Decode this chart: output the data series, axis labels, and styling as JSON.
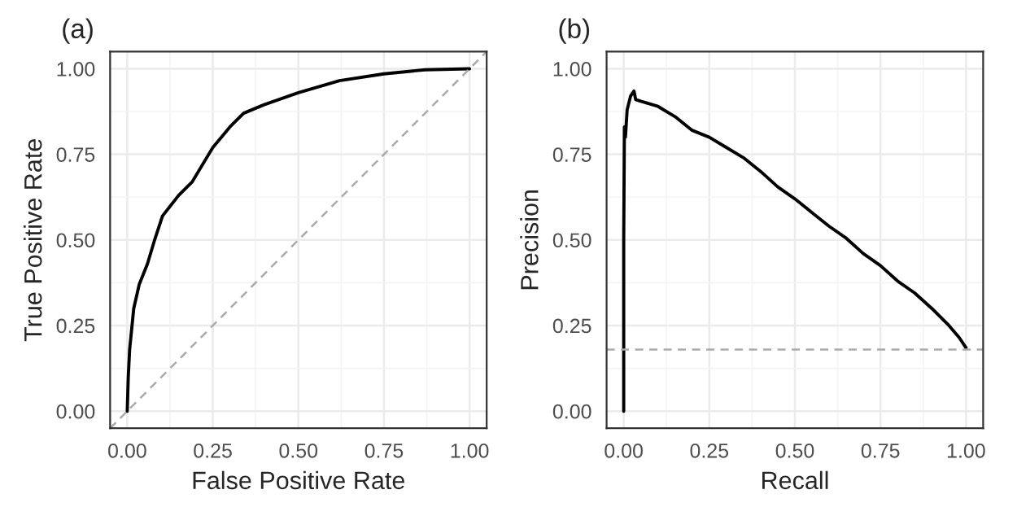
{
  "chart_data": [
    {
      "type": "line",
      "title": "(a)",
      "xlabel": "False Positive Rate",
      "ylabel": "True Positive Rate",
      "xlim": [
        -0.05,
        1.05
      ],
      "ylim": [
        -0.05,
        1.05
      ],
      "xticks": [
        {
          "value": 0,
          "label": "0.00"
        },
        {
          "value": 0.25,
          "label": "0.25"
        },
        {
          "value": 0.5,
          "label": "0.50"
        },
        {
          "value": 0.75,
          "label": "0.75"
        },
        {
          "value": 1,
          "label": "1.00"
        }
      ],
      "yticks": [
        {
          "value": 0,
          "label": "0.00"
        },
        {
          "value": 0.25,
          "label": "0.25"
        },
        {
          "value": 0.5,
          "label": "0.50"
        },
        {
          "value": 0.75,
          "label": "0.75"
        },
        {
          "value": 1,
          "label": "1.00"
        }
      ],
      "grid": true,
      "legend": false,
      "series": [
        {
          "color": "#000000",
          "line_style": "solid",
          "x": [
            0,
            0.003,
            0.007,
            0.019,
            0.035,
            0.059,
            0.08,
            0.103,
            0.15,
            0.19,
            0.25,
            0.3,
            0.34,
            0.4,
            0.5,
            0.62,
            0.75,
            0.87,
            1
          ],
          "values": [
            0,
            0.1,
            0.18,
            0.3,
            0.37,
            0.43,
            0.5,
            0.57,
            0.63,
            0.67,
            0.77,
            0.83,
            0.87,
            0.895,
            0.93,
            0.965,
            0.985,
            0.997,
            1
          ]
        },
        {
          "color": "#aaaaaa",
          "line_style": "dashed",
          "x": [
            -0.05,
            1.05
          ],
          "values": [
            -0.05,
            1.05
          ]
        }
      ]
    },
    {
      "type": "line",
      "title": "(b)",
      "xlabel": "Recall",
      "ylabel": "Precision",
      "xlim": [
        -0.05,
        1.05
      ],
      "ylim": [
        -0.05,
        1.05
      ],
      "xticks": [
        {
          "value": 0,
          "label": "0.00"
        },
        {
          "value": 0.25,
          "label": "0.25"
        },
        {
          "value": 0.5,
          "label": "0.50"
        },
        {
          "value": 0.75,
          "label": "0.75"
        },
        {
          "value": 1,
          "label": "1.00"
        }
      ],
      "yticks": [
        {
          "value": 0,
          "label": "0.00"
        },
        {
          "value": 0.25,
          "label": "0.25"
        },
        {
          "value": 0.5,
          "label": "0.50"
        },
        {
          "value": 0.75,
          "label": "0.75"
        },
        {
          "value": 1,
          "label": "1.00"
        }
      ],
      "grid": true,
      "legend": false,
      "ref_lines": [
        {
          "axis": "y",
          "value": 0.18,
          "color": "#aaaaaa",
          "line_style": "dashed"
        }
      ],
      "series": [
        {
          "color": "#000000",
          "line_style": "solid",
          "x": [
            0,
            0,
            0.002,
            0.005,
            0.01,
            0.02,
            0.03,
            0.035,
            0.05,
            0.1,
            0.15,
            0.2,
            0.25,
            0.3,
            0.35,
            0.4,
            0.45,
            0.5,
            0.55,
            0.6,
            0.65,
            0.7,
            0.75,
            0.8,
            0.85,
            0.9,
            0.95,
            0.98,
            1
          ],
          "values": [
            0,
            0.5,
            0.83,
            0.8,
            0.88,
            0.92,
            0.935,
            0.91,
            0.905,
            0.89,
            0.86,
            0.82,
            0.8,
            0.77,
            0.74,
            0.7,
            0.655,
            0.62,
            0.58,
            0.54,
            0.505,
            0.46,
            0.425,
            0.38,
            0.345,
            0.3,
            0.25,
            0.215,
            0.185
          ]
        }
      ]
    }
  ]
}
